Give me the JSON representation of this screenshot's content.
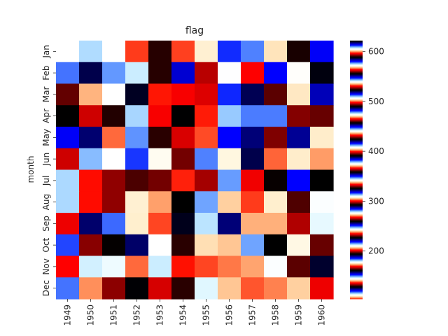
{
  "chart_data": {
    "type": "heatmap",
    "title": "flag",
    "xlabel": "",
    "ylabel": "month",
    "colormap": "flag",
    "x_categories": [
      "1949",
      "1950",
      "1951",
      "1952",
      "1953",
      "1954",
      "1955",
      "1956",
      "1957",
      "1958",
      "1959",
      "1960"
    ],
    "y_categories": [
      "Jan",
      "Feb",
      "Mar",
      "Apr",
      "May",
      "Jun",
      "Jul",
      "Aug",
      "Sep",
      "Oct",
      "Nov",
      "Dec"
    ],
    "values": [
      [
        112,
        115,
        145,
        171,
        196,
        204,
        242,
        284,
        315,
        340,
        360,
        417
      ],
      [
        118,
        126,
        150,
        180,
        196,
        188,
        233,
        277,
        301,
        318,
        342,
        391
      ],
      [
        132,
        141,
        178,
        193,
        236,
        235,
        267,
        317,
        356,
        362,
        406,
        419
      ],
      [
        129,
        135,
        163,
        181,
        235,
        227,
        269,
        313,
        348,
        348,
        396,
        461
      ],
      [
        121,
        125,
        172,
        183,
        229,
        234,
        270,
        318,
        355,
        363,
        420,
        472
      ],
      [
        135,
        149,
        178,
        218,
        243,
        264,
        315,
        374,
        422,
        435,
        472,
        535
      ],
      [
        148,
        170,
        199,
        230,
        264,
        302,
        364,
        413,
        465,
        491,
        548,
        622
      ],
      [
        148,
        170,
        199,
        242,
        272,
        293,
        347,
        405,
        467,
        505,
        559,
        606
      ],
      [
        136,
        158,
        184,
        209,
        237,
        259,
        312,
        355,
        404,
        404,
        463,
        508
      ],
      [
        119,
        133,
        162,
        191,
        211,
        229,
        274,
        306,
        347,
        359,
        407,
        461
      ],
      [
        104,
        114,
        146,
        172,
        180,
        203,
        237,
        271,
        305,
        310,
        362,
        390
      ],
      [
        118,
        140,
        166,
        194,
        201,
        229,
        278,
        306,
        336,
        337,
        405,
        432
      ]
    ],
    "vmin": 104,
    "vmax": 622,
    "colorbar_ticks": [
      200,
      300,
      400,
      500,
      600
    ]
  }
}
